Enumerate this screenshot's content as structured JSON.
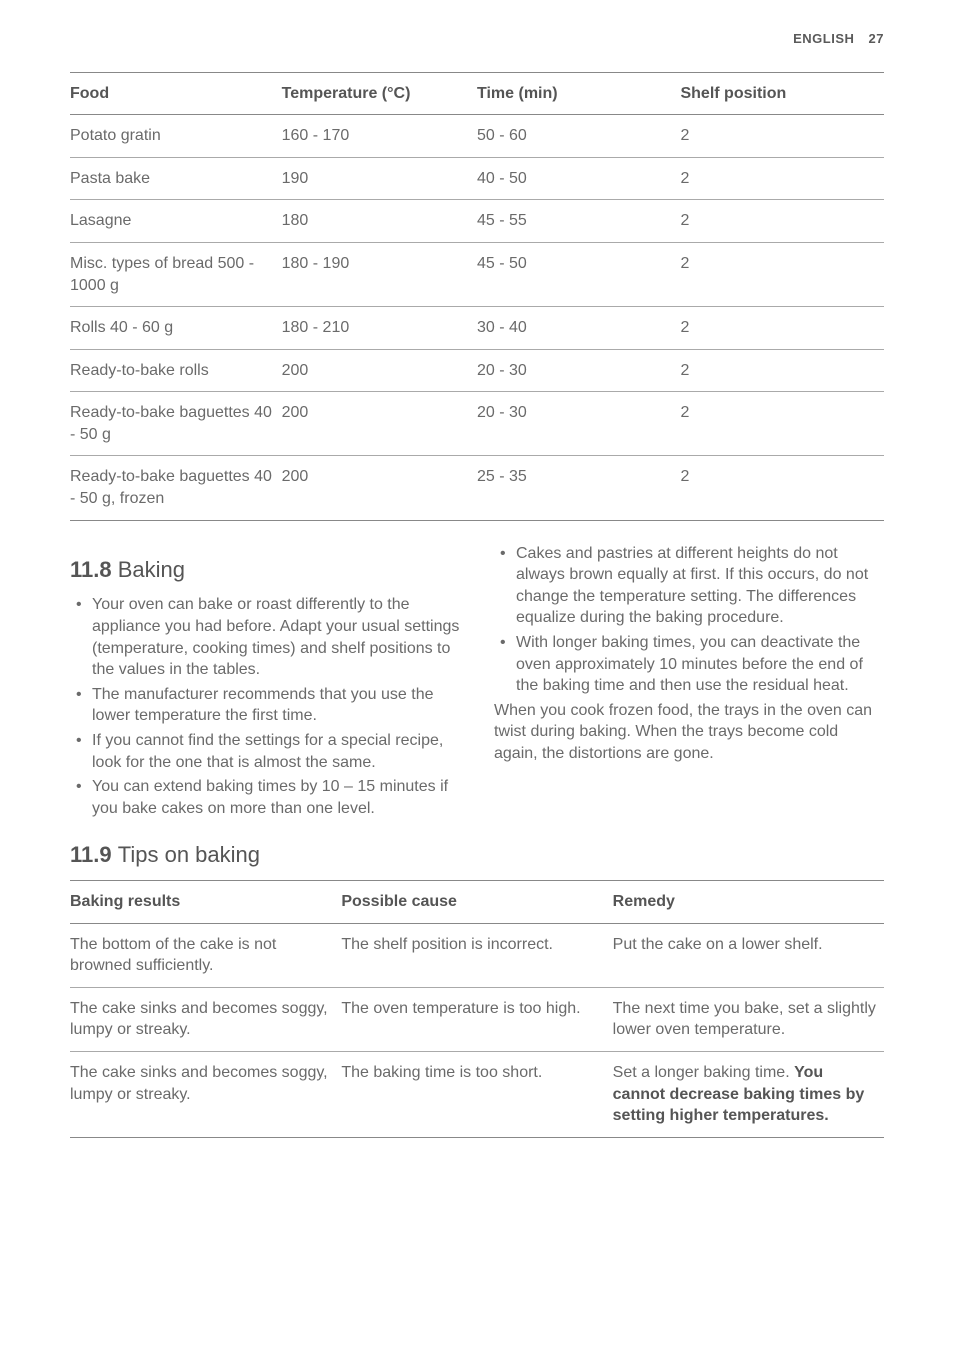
{
  "header": {
    "lang": "ENGLISH",
    "page": "27"
  },
  "table1": {
    "headers": [
      "Food",
      "Temperature (°C)",
      "Time (min)",
      "Shelf position"
    ],
    "rows": [
      [
        "Potato gratin",
        "160 - 170",
        "50 - 60",
        "2"
      ],
      [
        "Pasta bake",
        "190",
        "40 - 50",
        "2"
      ],
      [
        "Lasagne",
        "180",
        "45 - 55",
        "2"
      ],
      [
        "Misc. types of bread 500 - 1000 g",
        "180 - 190",
        "45 - 50",
        "2"
      ],
      [
        "Rolls 40 - 60 g",
        "180 - 210",
        "30 - 40",
        "2"
      ],
      [
        "Ready-to-bake rolls",
        "200",
        "20 - 30",
        "2"
      ],
      [
        "Ready-to-bake baguettes 40 - 50 g",
        "200",
        "20 - 30",
        "2"
      ],
      [
        "Ready-to-bake baguettes 40 - 50 g, frozen",
        "200",
        "25 - 35",
        "2"
      ]
    ]
  },
  "section8": {
    "num": "11.8",
    "title": "Baking",
    "left": [
      "Your oven can bake or roast differently to the appliance you had before. Adapt your usual settings (temperature, cooking times) and shelf positions to the values in the tables.",
      "The manufacturer recommends that you use the lower temperature the first time.",
      "If you cannot find the settings for a special recipe, look for the one that is almost the same.",
      "You can extend baking times by 10 – 15 minutes if you bake cakes on more than one level."
    ],
    "right_bullets": [
      "Cakes and pastries at different heights do not always brown equally at first. If this occurs, do not change the temperature setting. The differences equalize during the baking procedure.",
      "With longer baking times, you can deactivate the oven approximately 10 minutes before the end of the baking time and then use the residual heat."
    ],
    "right_para": "When you cook frozen food, the trays in the oven can twist during baking. When the trays become cold again, the distortions are gone."
  },
  "section9": {
    "num": "11.9",
    "title": "Tips on baking"
  },
  "table2": {
    "headers": [
      "Baking results",
      "Possible cause",
      "Remedy"
    ],
    "rows": [
      {
        "r": "The bottom of the cake is not browned sufficiently.",
        "c": "The shelf position is incorrect.",
        "m": "Put the cake on a lower shelf."
      },
      {
        "r": "The cake sinks and becomes soggy, lumpy or streaky.",
        "c": "The oven temperature is too high.",
        "m": "The next time you bake, set a slightly lower oven temperature."
      },
      {
        "r": "The cake sinks and becomes soggy, lumpy or streaky.",
        "c": "The baking time is too short.",
        "m_plain": "Set a longer baking time. ",
        "m_bold": "You cannot decrease baking times by setting higher temperatures."
      }
    ]
  }
}
